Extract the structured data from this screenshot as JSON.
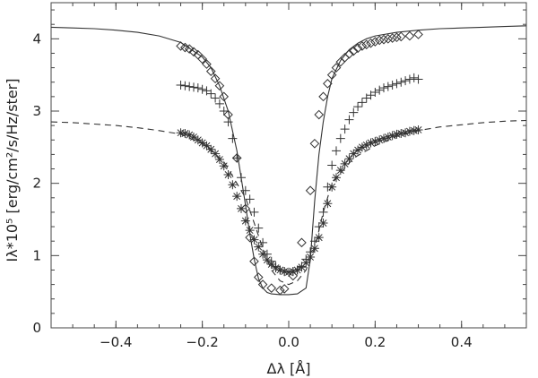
{
  "chart_data": {
    "type": "line",
    "xlabel": "Δλ [Å]",
    "ylabel": "Iλ*10⁵ [erg/cm²/s/Hz/ster]",
    "xlim": [
      -0.55,
      0.55
    ],
    "ylim": [
      0,
      4.5
    ],
    "grid": false,
    "xticks": [
      {
        "value": -0.4,
        "label": "−0.4"
      },
      {
        "value": -0.2,
        "label": "−0.2"
      },
      {
        "value": 0.0,
        "label": "0.0"
      },
      {
        "value": 0.2,
        "label": "0.2"
      },
      {
        "value": 0.4,
        "label": "0.4"
      }
    ],
    "yticks": [
      {
        "value": 0,
        "label": "0"
      },
      {
        "value": 1,
        "label": "1"
      },
      {
        "value": 2,
        "label": "2"
      },
      {
        "value": 3,
        "label": "3"
      },
      {
        "value": 4,
        "label": "4"
      }
    ],
    "series": [
      {
        "style": "solid-line",
        "color": "#333333",
        "x": [
          -0.55,
          -0.5,
          -0.45,
          -0.4,
          -0.35,
          -0.3,
          -0.25,
          -0.2,
          -0.18,
          -0.16,
          -0.14,
          -0.12,
          -0.1,
          -0.09,
          -0.08,
          -0.07,
          -0.06,
          -0.05,
          -0.04,
          -0.02,
          0.0,
          0.02,
          0.04,
          0.05,
          0.06,
          0.07,
          0.08,
          0.09,
          0.1,
          0.12,
          0.14,
          0.16,
          0.18,
          0.2,
          0.25,
          0.3,
          0.35,
          0.4,
          0.45,
          0.5,
          0.55
        ],
        "y": [
          4.16,
          4.15,
          4.14,
          4.12,
          4.09,
          4.04,
          3.95,
          3.75,
          3.6,
          3.35,
          3.0,
          2.45,
          1.7,
          1.3,
          0.95,
          0.68,
          0.55,
          0.49,
          0.47,
          0.46,
          0.46,
          0.47,
          0.55,
          0.95,
          1.75,
          2.4,
          2.85,
          3.2,
          3.45,
          3.7,
          3.85,
          3.94,
          4.0,
          4.04,
          4.09,
          4.12,
          4.14,
          4.15,
          4.16,
          4.17,
          4.18
        ]
      },
      {
        "style": "dashed-line",
        "color": "#333333",
        "x": [
          -0.55,
          -0.5,
          -0.45,
          -0.4,
          -0.35,
          -0.3,
          -0.25,
          -0.2,
          -0.15,
          -0.1,
          -0.08,
          -0.06,
          -0.04,
          -0.02,
          0.0,
          0.02,
          0.04,
          0.06,
          0.08,
          0.1,
          0.15,
          0.2,
          0.25,
          0.3,
          0.35,
          0.4,
          0.45,
          0.5,
          0.55
        ],
        "y": [
          2.85,
          2.84,
          2.82,
          2.8,
          2.77,
          2.73,
          2.68,
          2.55,
          2.3,
          1.8,
          1.45,
          1.1,
          0.8,
          0.65,
          0.6,
          0.65,
          0.8,
          1.1,
          1.6,
          2.0,
          2.35,
          2.52,
          2.65,
          2.73,
          2.78,
          2.81,
          2.84,
          2.86,
          2.87
        ]
      },
      {
        "style": "diamond",
        "color": "#333333",
        "x": [
          -0.25,
          -0.24,
          -0.23,
          -0.22,
          -0.21,
          -0.2,
          -0.19,
          -0.18,
          -0.17,
          -0.16,
          -0.15,
          -0.14,
          -0.12,
          -0.1,
          -0.09,
          -0.08,
          -0.07,
          -0.06,
          -0.04,
          -0.02,
          -0.01,
          0.01,
          0.03,
          0.05,
          0.06,
          0.07,
          0.08,
          0.09,
          0.1,
          0.11,
          0.12,
          0.13,
          0.14,
          0.15,
          0.16,
          0.17,
          0.18,
          0.19,
          0.2,
          0.21,
          0.22,
          0.23,
          0.24,
          0.25,
          0.26,
          0.28,
          0.3
        ],
        "y": [
          3.9,
          3.88,
          3.86,
          3.82,
          3.78,
          3.72,
          3.65,
          3.55,
          3.45,
          3.35,
          3.2,
          2.95,
          2.35,
          1.65,
          1.25,
          0.92,
          0.7,
          0.6,
          0.55,
          0.52,
          0.54,
          0.72,
          1.18,
          1.9,
          2.55,
          2.95,
          3.2,
          3.38,
          3.5,
          3.6,
          3.68,
          3.74,
          3.79,
          3.83,
          3.87,
          3.9,
          3.92,
          3.94,
          3.96,
          3.98,
          3.99,
          4.0,
          4.01,
          4.02,
          4.03,
          4.04,
          4.06
        ]
      },
      {
        "style": "plus",
        "color": "#333333",
        "x": [
          -0.25,
          -0.24,
          -0.23,
          -0.22,
          -0.21,
          -0.2,
          -0.19,
          -0.18,
          -0.17,
          -0.16,
          -0.15,
          -0.14,
          -0.13,
          -0.12,
          -0.11,
          -0.1,
          -0.09,
          -0.08,
          -0.07,
          -0.06,
          -0.05,
          -0.04,
          -0.03,
          -0.02,
          -0.01,
          0.0,
          0.01,
          0.02,
          0.03,
          0.04,
          0.05,
          0.06,
          0.07,
          0.08,
          0.09,
          0.1,
          0.11,
          0.12,
          0.13,
          0.14,
          0.15,
          0.16,
          0.17,
          0.18,
          0.19,
          0.2,
          0.21,
          0.22,
          0.23,
          0.24,
          0.25,
          0.26,
          0.27,
          0.28,
          0.29,
          0.3
        ],
        "y": [
          3.36,
          3.35,
          3.34,
          3.33,
          3.32,
          3.3,
          3.28,
          3.24,
          3.18,
          3.1,
          3.0,
          2.85,
          2.62,
          2.35,
          2.08,
          1.9,
          1.78,
          1.6,
          1.38,
          1.18,
          1.02,
          0.92,
          0.85,
          0.8,
          0.78,
          0.77,
          0.78,
          0.8,
          0.85,
          0.95,
          1.05,
          1.2,
          1.4,
          1.6,
          1.95,
          2.25,
          2.45,
          2.62,
          2.75,
          2.88,
          2.98,
          3.06,
          3.12,
          3.18,
          3.22,
          3.26,
          3.29,
          3.32,
          3.34,
          3.36,
          3.38,
          3.4,
          3.42,
          3.44,
          3.46,
          3.44
        ]
      },
      {
        "style": "asterisk",
        "color": "#333333",
        "x": [
          -0.25,
          -0.24,
          -0.23,
          -0.22,
          -0.21,
          -0.2,
          -0.19,
          -0.18,
          -0.17,
          -0.16,
          -0.15,
          -0.14,
          -0.13,
          -0.12,
          -0.11,
          -0.1,
          -0.09,
          -0.08,
          -0.07,
          -0.06,
          -0.05,
          -0.04,
          -0.03,
          -0.02,
          -0.01,
          0.0,
          0.01,
          0.02,
          0.03,
          0.04,
          0.05,
          0.06,
          0.07,
          0.08,
          0.09,
          0.1,
          0.11,
          0.12,
          0.13,
          0.14,
          0.15,
          0.16,
          0.17,
          0.18,
          0.19,
          0.2,
          0.21,
          0.22,
          0.23,
          0.24,
          0.25,
          0.26,
          0.27,
          0.28,
          0.29,
          0.3
        ],
        "y": [
          2.7,
          2.69,
          2.67,
          2.64,
          2.6,
          2.56,
          2.52,
          2.47,
          2.41,
          2.33,
          2.24,
          2.12,
          1.98,
          1.82,
          1.65,
          1.48,
          1.35,
          1.22,
          1.12,
          1.02,
          0.94,
          0.88,
          0.83,
          0.8,
          0.78,
          0.77,
          0.78,
          0.8,
          0.84,
          0.9,
          0.98,
          1.1,
          1.25,
          1.45,
          1.72,
          1.95,
          2.08,
          2.18,
          2.27,
          2.34,
          2.41,
          2.46,
          2.5,
          2.53,
          2.56,
          2.58,
          2.6,
          2.62,
          2.64,
          2.66,
          2.68,
          2.69,
          2.7,
          2.72,
          2.73,
          2.74
        ]
      }
    ]
  }
}
